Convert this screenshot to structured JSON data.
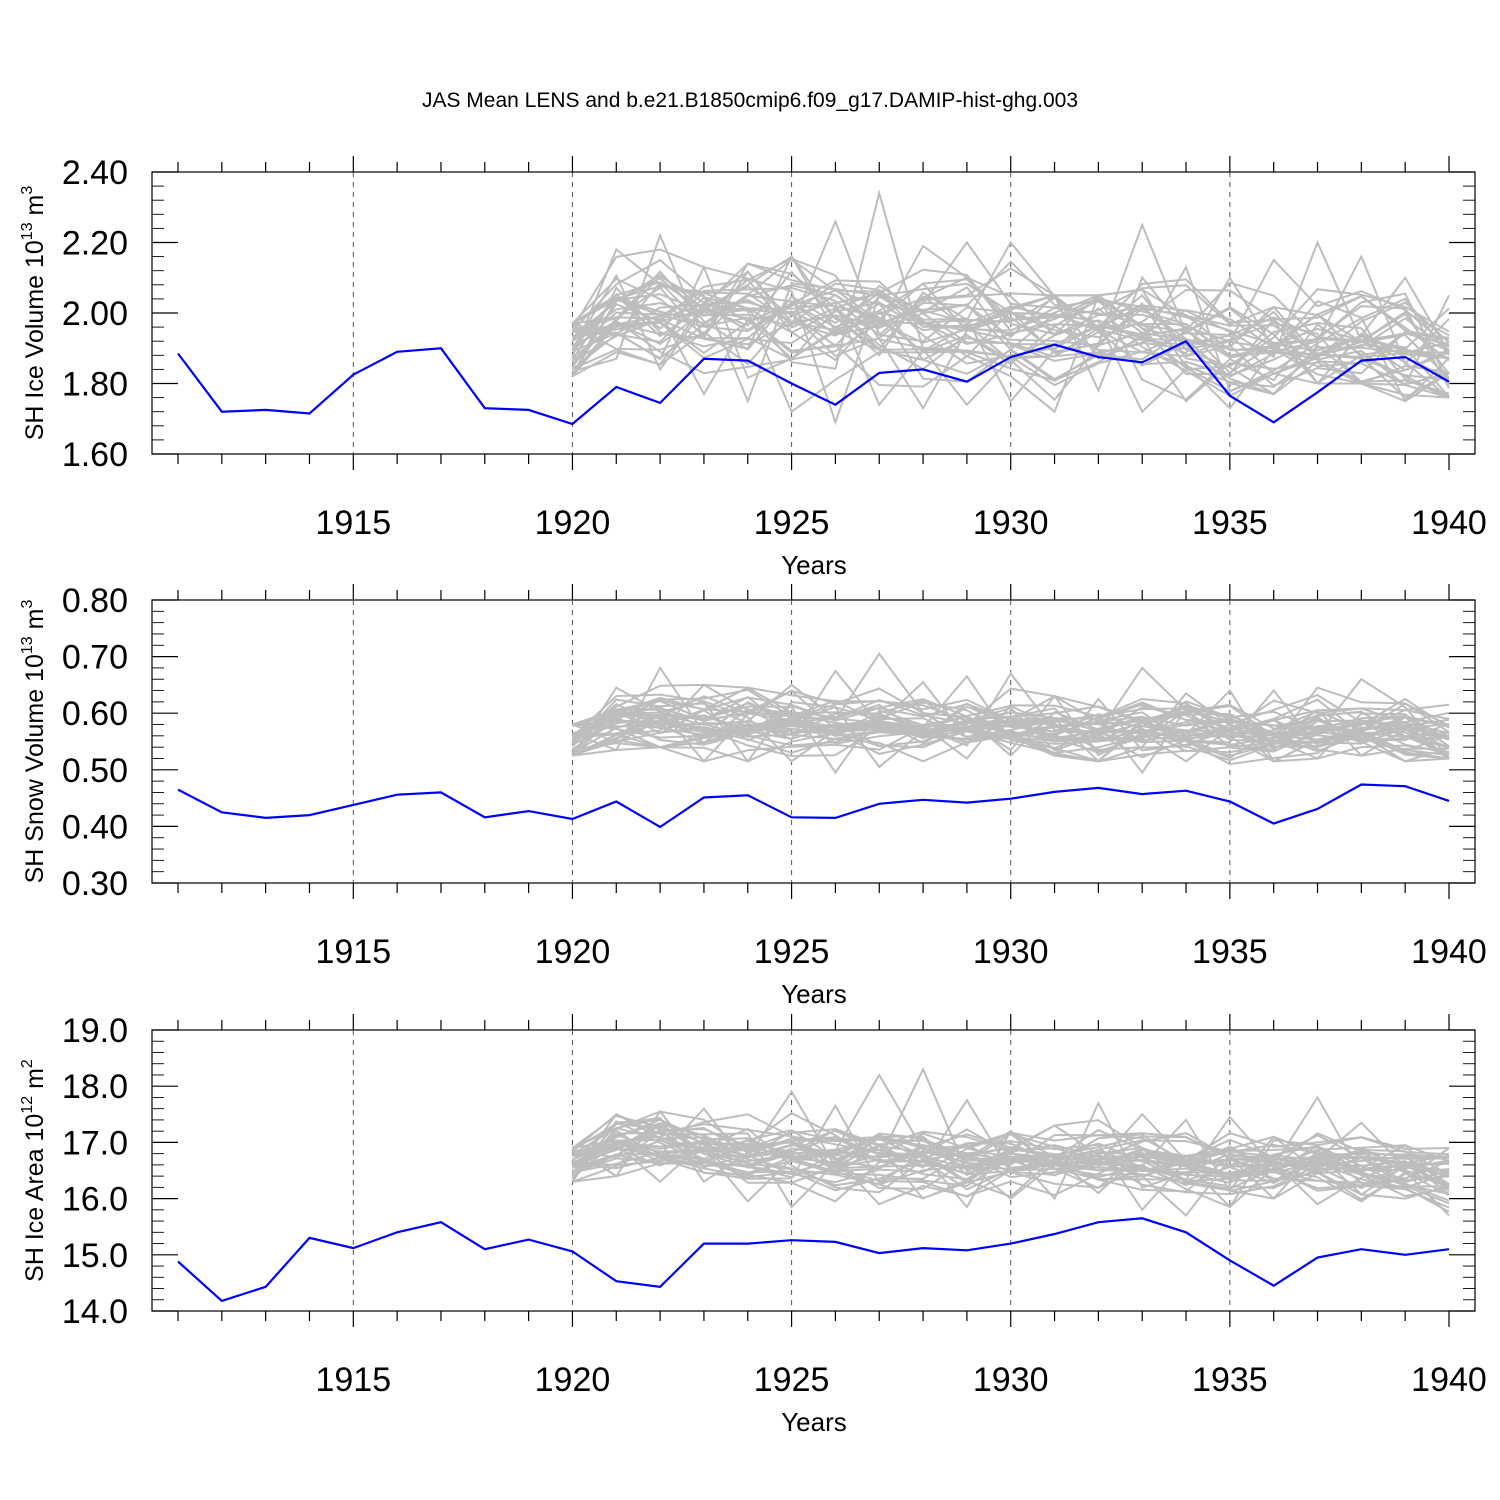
{
  "title": "JAS Mean LENS and b.e21.B1850cmip6.f09_g17.DAMIP-hist-ghg.003",
  "colors": {
    "main": "#0000ff",
    "ensemble": "#bdbdbd",
    "grid": "#555555"
  },
  "chart_data": [
    {
      "type": "line",
      "ylabel": "SH Ice Volume 10",
      "ylabel_exp": "13",
      "ylabel_unit": " m",
      "ylabel_unit_exp": "3",
      "xlabel": "Years",
      "xlim": [
        1911,
        1940
      ],
      "ylim": [
        1.6,
        2.4
      ],
      "yticks": [
        1.6,
        1.8,
        2.0,
        2.2,
        2.4
      ],
      "ytick_labels": [
        "1.60",
        "1.80",
        "2.00",
        "2.20",
        "2.40"
      ],
      "xticks": [
        1915,
        1920,
        1925,
        1930,
        1935,
        1940
      ],
      "xtick_labels": [
        "1915",
        "1920",
        "1925",
        "1930",
        "1935",
        "1940"
      ],
      "grid": "dashed vertical at x ticks",
      "series": [
        {
          "name": "b.e21.B1850cmip6.f09_g17.DAMIP-hist-ghg.003",
          "x": [
            1911,
            1912,
            1913,
            1914,
            1915,
            1916,
            1917,
            1918,
            1919,
            1920,
            1921,
            1922,
            1923,
            1924,
            1925,
            1926,
            1927,
            1928,
            1929,
            1930,
            1931,
            1932,
            1933,
            1934,
            1935,
            1936,
            1937,
            1938,
            1939,
            1940
          ],
          "values": [
            1.885,
            1.72,
            1.725,
            1.715,
            1.825,
            1.89,
            1.9,
            1.73,
            1.725,
            1.685,
            1.79,
            1.745,
            1.87,
            1.865,
            1.8,
            1.74,
            1.83,
            1.84,
            1.805,
            1.875,
            1.91,
            1.875,
            1.86,
            1.92,
            1.765,
            1.69,
            1.775,
            1.865,
            1.875,
            1.805
          ]
        }
      ],
      "ensemble": {
        "name": "LENS members",
        "x_start": 1920,
        "x_end": 1940,
        "members": 40,
        "mean_values": [
          1.9,
          1.97,
          1.975,
          1.97,
          1.975,
          1.975,
          1.97,
          1.96,
          1.955,
          1.95,
          1.945,
          1.945,
          1.95,
          1.95,
          1.945,
          1.925,
          1.92,
          1.915,
          1.92,
          1.91,
          1.88
        ],
        "spread": 0.08,
        "max_values": [
          1.97,
          2.18,
          2.22,
          2.13,
          2.14,
          2.16,
          2.26,
          2.34,
          2.19,
          2.2,
          2.2,
          2.05,
          2.05,
          2.25,
          2.13,
          2.1,
          2.15,
          2.2,
          2.16,
          2.1,
          2.05
        ],
        "min_values": [
          1.82,
          1.87,
          1.84,
          1.77,
          1.75,
          1.72,
          1.69,
          1.74,
          1.73,
          1.74,
          1.75,
          1.72,
          1.78,
          1.72,
          1.75,
          1.73,
          1.77,
          1.8,
          1.8,
          1.75,
          1.76
        ]
      }
    },
    {
      "type": "line",
      "ylabel": "SH Snow Volume 10",
      "ylabel_exp": "13",
      "ylabel_unit": " m",
      "ylabel_unit_exp": "3",
      "xlabel": "Years",
      "xlim": [
        1911,
        1940
      ],
      "ylim": [
        0.3,
        0.8
      ],
      "yticks": [
        0.3,
        0.4,
        0.5,
        0.6,
        0.7,
        0.8
      ],
      "ytick_labels": [
        "0.30",
        "0.40",
        "0.50",
        "0.60",
        "0.70",
        "0.80"
      ],
      "xticks": [
        1915,
        1920,
        1925,
        1930,
        1935,
        1940
      ],
      "xtick_labels": [
        "1915",
        "1920",
        "1925",
        "1930",
        "1935",
        "1940"
      ],
      "grid": "dashed vertical at x ticks",
      "series": [
        {
          "name": "b.e21.B1850cmip6.f09_g17.DAMIP-hist-ghg.003",
          "x": [
            1911,
            1912,
            1913,
            1914,
            1915,
            1916,
            1917,
            1918,
            1919,
            1920,
            1921,
            1922,
            1923,
            1924,
            1925,
            1926,
            1927,
            1928,
            1929,
            1930,
            1931,
            1932,
            1933,
            1934,
            1935,
            1936,
            1937,
            1938,
            1939,
            1940
          ],
          "values": [
            0.465,
            0.425,
            0.415,
            0.42,
            0.438,
            0.456,
            0.46,
            0.416,
            0.427,
            0.413,
            0.444,
            0.399,
            0.451,
            0.455,
            0.416,
            0.415,
            0.44,
            0.447,
            0.442,
            0.449,
            0.461,
            0.468,
            0.457,
            0.463,
            0.444,
            0.405,
            0.431,
            0.474,
            0.471,
            0.445
          ]
        }
      ],
      "ensemble": {
        "name": "LENS members",
        "x_start": 1920,
        "x_end": 1940,
        "members": 40,
        "mean_values": [
          0.555,
          0.585,
          0.59,
          0.585,
          0.59,
          0.595,
          0.585,
          0.58,
          0.575,
          0.575,
          0.575,
          0.575,
          0.57,
          0.575,
          0.575,
          0.565,
          0.56,
          0.57,
          0.575,
          0.57,
          0.555
        ],
        "spread": 0.028,
        "max_values": [
          0.58,
          0.645,
          0.68,
          0.65,
          0.645,
          0.65,
          0.675,
          0.705,
          0.655,
          0.665,
          0.67,
          0.63,
          0.625,
          0.68,
          0.635,
          0.64,
          0.64,
          0.645,
          0.66,
          0.625,
          0.615
        ],
        "min_values": [
          0.525,
          0.535,
          0.54,
          0.515,
          0.515,
          0.515,
          0.495,
          0.505,
          0.515,
          0.52,
          0.525,
          0.525,
          0.515,
          0.495,
          0.515,
          0.51,
          0.515,
          0.52,
          0.525,
          0.515,
          0.52
        ]
      }
    },
    {
      "type": "line",
      "ylabel": "SH Ice Area 10",
      "ylabel_exp": "12",
      "ylabel_unit": " m",
      "ylabel_unit_exp": "2",
      "xlabel": "Years",
      "xlim": [
        1911,
        1940
      ],
      "ylim": [
        14.0,
        19.0
      ],
      "yticks": [
        14,
        15,
        16,
        17,
        18,
        19
      ],
      "ytick_labels": [
        "14.0",
        "15.0",
        "16.0",
        "17.0",
        "18.0",
        "19.0"
      ],
      "xticks": [
        1915,
        1920,
        1925,
        1930,
        1935,
        1940
      ],
      "xtick_labels": [
        "1915",
        "1920",
        "1925",
        "1930",
        "1935",
        "1940"
      ],
      "grid": "dashed vertical at x ticks",
      "series": [
        {
          "name": "b.e21.B1850cmip6.f09_g17.DAMIP-hist-ghg.003",
          "x": [
            1911,
            1912,
            1913,
            1914,
            1915,
            1916,
            1917,
            1918,
            1919,
            1920,
            1921,
            1922,
            1923,
            1924,
            1925,
            1926,
            1927,
            1928,
            1929,
            1930,
            1931,
            1932,
            1933,
            1934,
            1935,
            1936,
            1937,
            1938,
            1939,
            1940
          ],
          "values": [
            14.88,
            14.18,
            14.43,
            15.3,
            15.12,
            15.4,
            15.58,
            15.1,
            15.27,
            15.06,
            14.53,
            14.43,
            15.2,
            15.2,
            15.26,
            15.23,
            15.03,
            15.12,
            15.08,
            15.2,
            15.37,
            15.58,
            15.65,
            15.4,
            14.9,
            14.45,
            14.95,
            15.1,
            15.0,
            15.1
          ]
        }
      ],
      "ensemble": {
        "name": "LENS members",
        "x_start": 1920,
        "x_end": 1940,
        "members": 40,
        "mean_values": [
          16.6,
          16.95,
          16.95,
          16.9,
          16.75,
          16.75,
          16.7,
          16.75,
          16.7,
          16.65,
          16.7,
          16.7,
          16.75,
          16.7,
          16.6,
          16.6,
          16.6,
          16.65,
          16.6,
          16.55,
          16.4
        ],
        "spread": 0.3,
        "max_values": [
          16.9,
          17.5,
          17.55,
          17.6,
          17.5,
          17.9,
          17.65,
          18.2,
          18.3,
          17.75,
          17.2,
          17.3,
          17.7,
          17.5,
          17.4,
          17.45,
          17.1,
          17.8,
          17.35,
          16.95,
          16.9
        ],
        "min_values": [
          16.3,
          16.4,
          16.3,
          16.3,
          15.95,
          15.85,
          15.95,
          15.9,
          16.0,
          15.85,
          16.0,
          16.0,
          16.1,
          15.8,
          15.7,
          15.85,
          16.0,
          15.9,
          15.95,
          16.0,
          15.7
        ]
      }
    }
  ]
}
